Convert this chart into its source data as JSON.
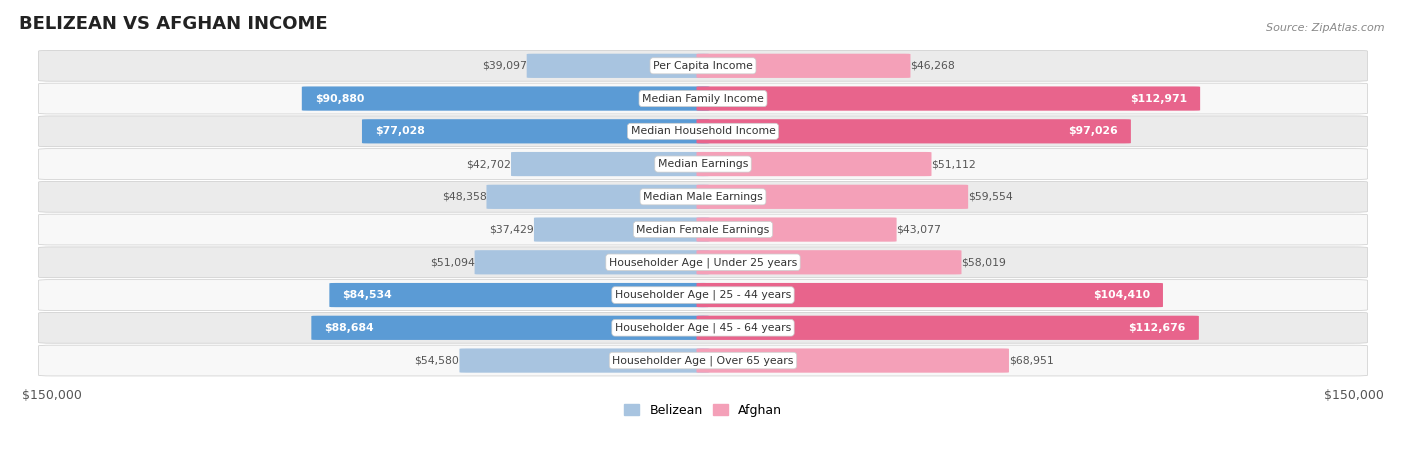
{
  "title": "BELIZEAN VS AFGHAN INCOME",
  "source": "Source: ZipAtlas.com",
  "categories": [
    "Per Capita Income",
    "Median Family Income",
    "Median Household Income",
    "Median Earnings",
    "Median Male Earnings",
    "Median Female Earnings",
    "Householder Age | Under 25 years",
    "Householder Age | 25 - 44 years",
    "Householder Age | 45 - 64 years",
    "Householder Age | Over 65 years"
  ],
  "belizean_values": [
    39097,
    90880,
    77028,
    42702,
    48358,
    37429,
    51094,
    84534,
    88684,
    54580
  ],
  "afghan_values": [
    46268,
    112971,
    97026,
    51112,
    59554,
    43077,
    58019,
    104410,
    112676,
    68951
  ],
  "belizean_labels": [
    "$39,097",
    "$90,880",
    "$77,028",
    "$42,702",
    "$48,358",
    "$37,429",
    "$51,094",
    "$84,534",
    "$88,684",
    "$54,580"
  ],
  "afghan_labels": [
    "$46,268",
    "$112,971",
    "$97,026",
    "$51,112",
    "$59,554",
    "$43,077",
    "$58,019",
    "$104,410",
    "$112,676",
    "$68,951"
  ],
  "max_value": 150000,
  "belizean_bar_color_light": "#a8c4e0",
  "belizean_bar_color_dark": "#5b9bd5",
  "afghan_bar_color_light": "#f4a0b8",
  "afghan_bar_color_dark": "#e8648c",
  "row_bg_odd": "#ebebeb",
  "row_bg_even": "#f8f8f8",
  "xlabel_left": "$150,000",
  "xlabel_right": "$150,000",
  "legend_belizean": "Belizean",
  "legend_afghan": "Afghan",
  "strong_rows": [
    1,
    2,
    7,
    8
  ]
}
